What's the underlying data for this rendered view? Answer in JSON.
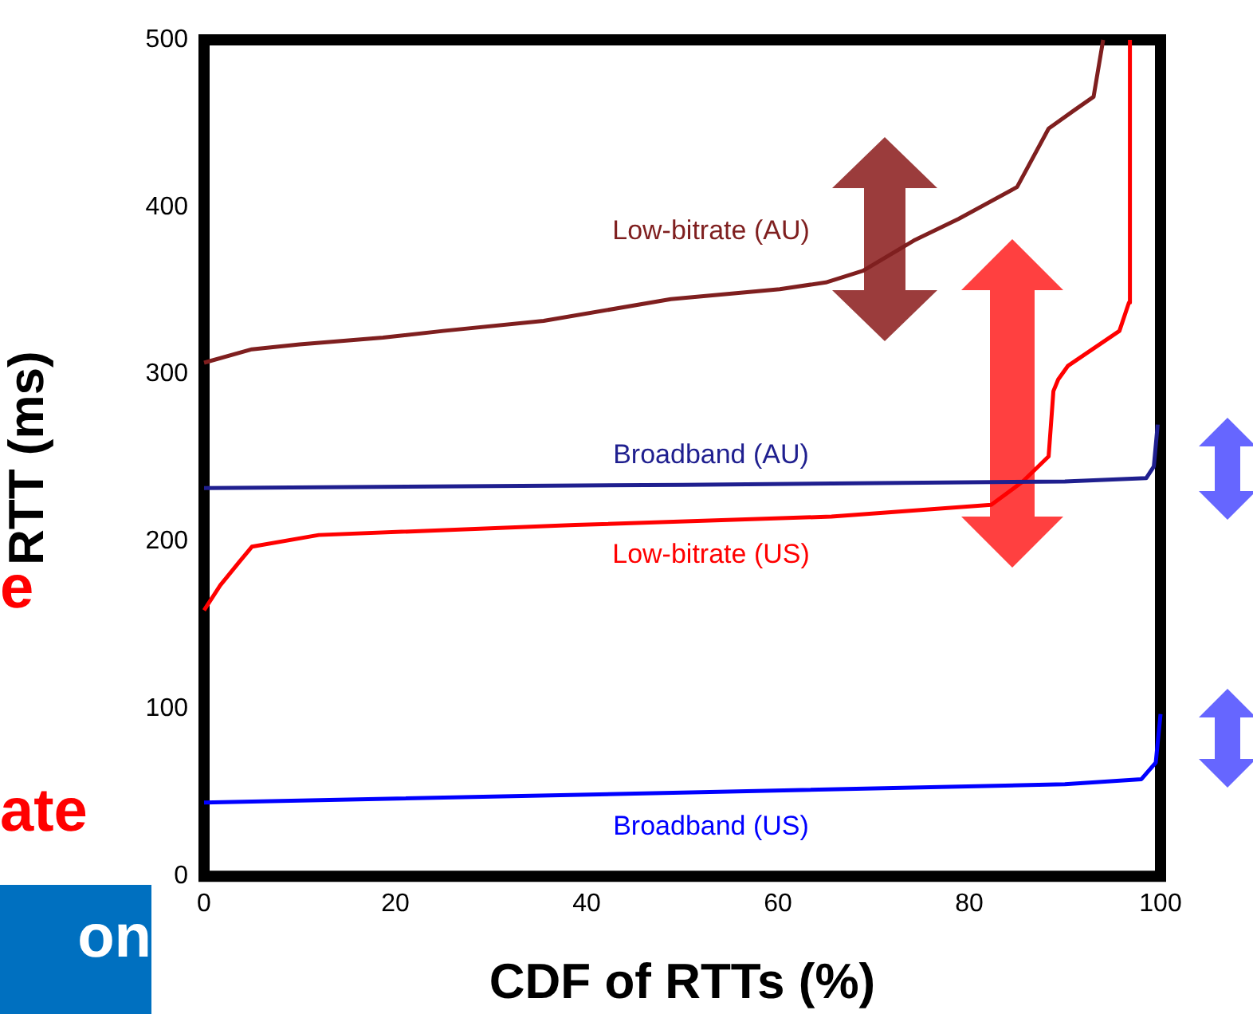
{
  "chart_data": {
    "type": "line",
    "xlabel": "CDF of RTTs (%)",
    "ylabel": "RTT (ms)",
    "xlim": [
      0,
      100
    ],
    "xticks": [
      0,
      20,
      40,
      60,
      80,
      100
    ],
    "ylim": [
      0,
      500
    ],
    "yticks": [
      0,
      100,
      200,
      300,
      400,
      500
    ],
    "grid": false,
    "legend": false,
    "marker": "none",
    "line_style": "solid",
    "annotations": [
      "e",
      "ate",
      "on"
    ],
    "series": [
      {
        "name": "Low-bitrate (AU)",
        "color": "#7f1f1f",
        "x": [
          0,
          5,
          10,
          18.7,
          25,
          35.5,
          48.8,
          60.2,
          65,
          68.9,
          74.2,
          78.9,
          85,
          88.3,
          91,
          93,
          94
        ],
        "values": [
          307,
          315,
          318,
          322,
          326,
          332,
          345,
          351,
          355,
          362,
          380,
          393,
          412,
          447,
          458,
          466,
          500
        ]
      },
      {
        "name": "Broadband (AU)",
        "color": "#1f1f8f",
        "x": [
          0,
          50,
          90,
          98.5,
          99.3,
          99.7
        ],
        "values": [
          232,
          234,
          236,
          238,
          245,
          270
        ]
      },
      {
        "name": "Low-bitrate (US)",
        "color": "#ff0000",
        "x": [
          0,
          1.7,
          3.7,
          5,
          12,
          38.8,
          65.6,
          82.3,
          85.6,
          88.3,
          88.8,
          89.3,
          90.3,
          95.7,
          96.7,
          96.8
        ],
        "values": [
          159,
          174,
          188,
          197,
          204,
          210,
          215,
          222,
          236,
          251,
          290,
          297,
          305,
          326,
          343,
          500
        ]
      },
      {
        "name": "Broadband (US)",
        "color": "#0000ff",
        "x": [
          0,
          50,
          90,
          98,
          99.5,
          100
        ],
        "values": [
          44,
          50,
          55,
          58,
          68,
          97
        ]
      }
    ]
  }
}
